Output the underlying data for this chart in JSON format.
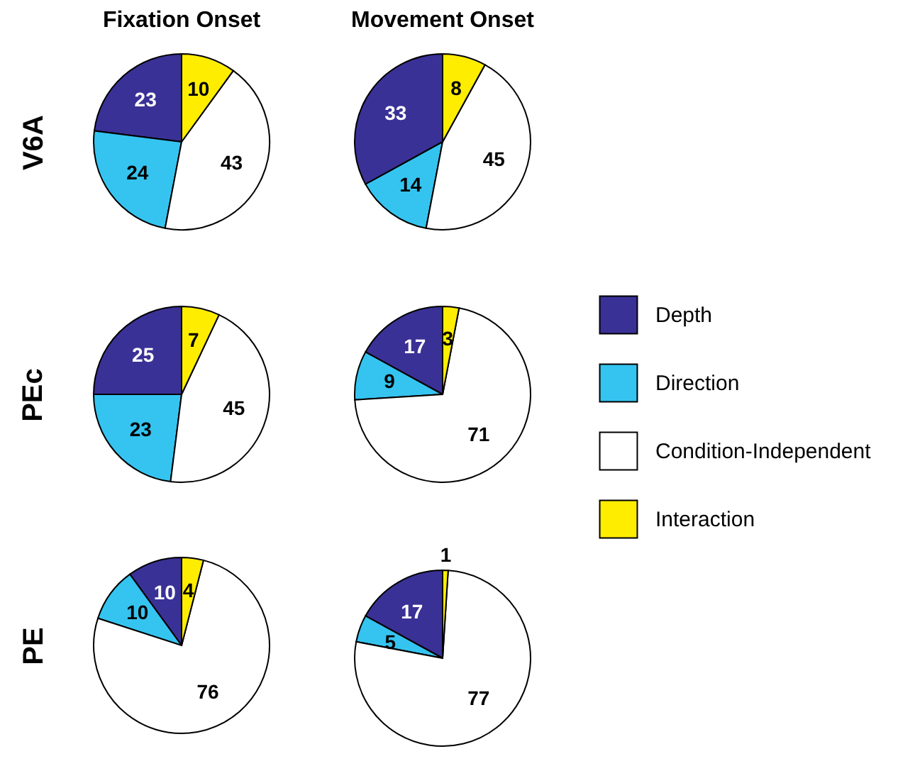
{
  "chart_data": [
    {
      "type": "pie",
      "title": "Fixation Onset",
      "ylabel": "V6A",
      "categories": [
        null,
        null,
        null,
        null
      ],
      "values": [
        23,
        24,
        43,
        10
      ],
      "colors": [
        "#3a3196",
        "#35c4f0",
        "#ffffff",
        "#ffed00"
      ],
      "data_labels": true
    },
    {
      "type": "pie",
      "title": "Movement Onset",
      "categories": [
        null,
        null,
        null,
        null
      ],
      "values": [
        33,
        14,
        45,
        8
      ],
      "colors": [
        "#3a3196",
        "#35c4f0",
        "#ffffff",
        "#ffed00"
      ],
      "data_labels": true
    },
    {
      "type": "pie",
      "ylabel": "PEc",
      "categories": [
        null,
        null,
        null,
        null
      ],
      "values": [
        25,
        23,
        45,
        7
      ],
      "colors": [
        "#3a3196",
        "#35c4f0",
        "#ffffff",
        "#ffed00"
      ],
      "data_labels": true
    },
    {
      "type": "pie",
      "categories": [
        "Depth",
        "Direction",
        "Condition-Independent",
        "Interaction"
      ],
      "values": [
        17,
        9,
        71,
        3
      ],
      "colors": [
        "#3a3196",
        "#35c4f0",
        "#ffffff",
        "#ffed00"
      ],
      "data_labels": true,
      "legend": "right"
    },
    {
      "type": "pie",
      "ylabel": "PE",
      "categories": [
        null,
        null,
        null,
        null
      ],
      "values": [
        10,
        10,
        76,
        4
      ],
      "colors": [
        "#3a3196",
        "#35c4f0",
        "#ffffff",
        "#ffed00"
      ],
      "data_labels": true
    },
    {
      "type": "pie",
      "categories": [
        null,
        null,
        null,
        null
      ],
      "values": [
        17,
        5,
        77,
        1
      ],
      "colors": [
        "#3a3196",
        "#35c4f0",
        "#ffffff",
        "#ffed00"
      ],
      "data_labels": true
    }
  ]
}
